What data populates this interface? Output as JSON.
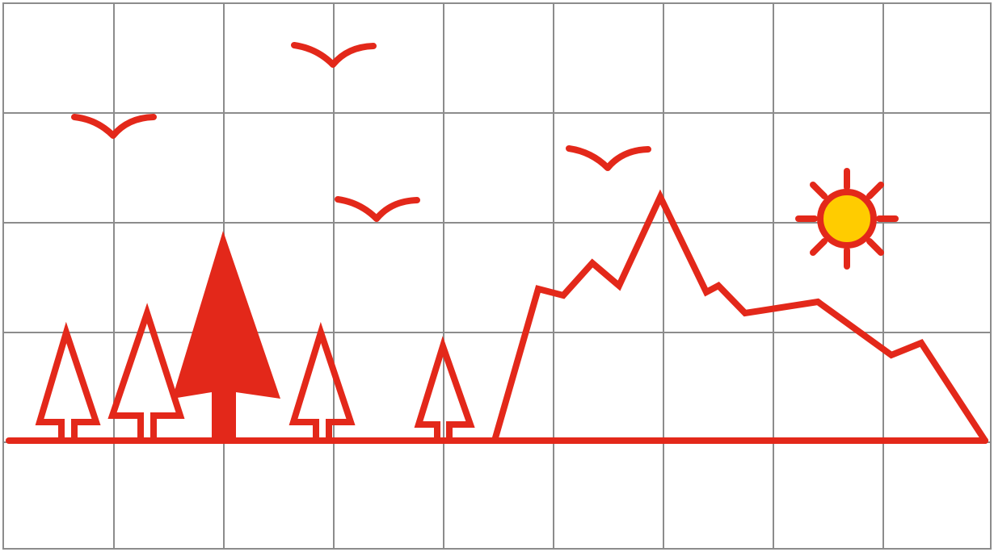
{
  "scene": {
    "description_free": true,
    "colors": {
      "accent": "#e3281a",
      "sun_fill": "#ffcc00",
      "grid": "#8c8c8c",
      "background": "#ffffff"
    },
    "elements": {
      "grid": "grid-lines",
      "ground": "ground-line",
      "mountain": "mountain-outline",
      "sun": "sun-icon",
      "birds": [
        "bird-icon",
        "bird-icon",
        "bird-icon",
        "bird-icon"
      ],
      "trees": [
        "outline-tree-icon",
        "outline-tree-icon",
        "filled-tree-icon",
        "outline-tree-icon",
        "outline-tree-icon"
      ]
    }
  }
}
